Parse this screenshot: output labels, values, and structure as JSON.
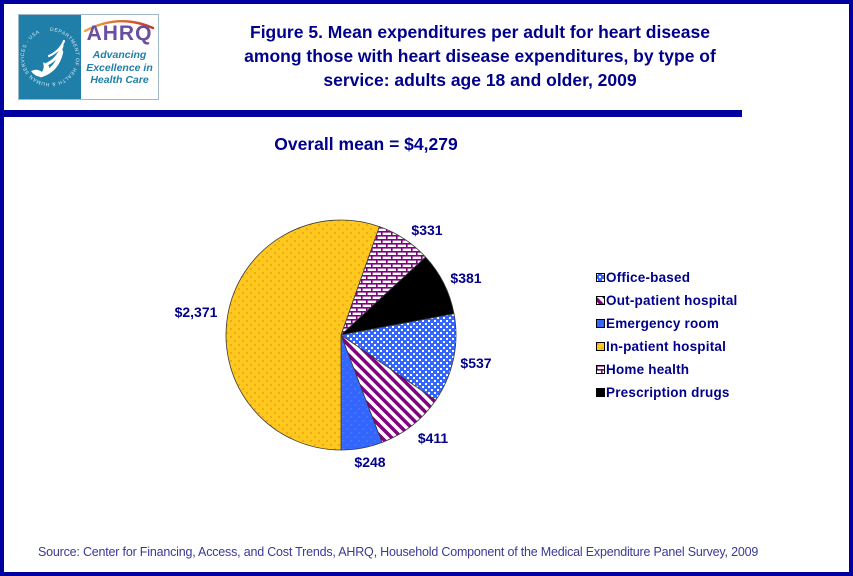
{
  "header": {
    "logo": {
      "agency_wordmark": "AHRQ",
      "tagline_lines": [
        "Advancing",
        "Excellence in",
        "Health Care"
      ],
      "seal_text": "DEPARTMENT OF HEALTH & HUMAN SERVICES - USA"
    },
    "title_lines": [
      "Figure 5. Mean expenditures per adult for heart disease",
      "among those with heart disease expenditures, by type of",
      "service: adults age 18 and older, 2009"
    ]
  },
  "overall_mean_label": "Overall mean = $4,279",
  "source_note": "Source: Center for Financing, Access, and Cost Trends, AHRQ, Household Component of the Medical Expenditure Panel Survey, 2009",
  "colors": {
    "navy_text": "#00008B",
    "frame_blue": "#0000A0",
    "gold": "#FFC81E",
    "royal_blue": "#3366FF",
    "purple": "#800080",
    "black": "#000000",
    "seal_teal": "#1F7FA8",
    "ahrq_purple": "#6B4E9E"
  },
  "chart_data": {
    "type": "pie",
    "title": "Figure 5. Mean expenditures per adult for heart disease among those with heart disease expenditures, by type of service: adults age 18 and older, 2009",
    "annotation": "Overall mean = $4,279",
    "total": 4279,
    "units": "US dollars, mean expenditure per adult",
    "legend_position": "right",
    "start_angle_deg": 19.47,
    "draw_order": [
      4,
      5,
      0,
      1,
      2,
      3
    ],
    "slices": [
      {
        "name": "Office-based",
        "value": 537,
        "label": "$537",
        "pattern": "office"
      },
      {
        "name": "Out-patient hospital",
        "value": 411,
        "label": "$411",
        "pattern": "outpatient"
      },
      {
        "name": "Emergency room",
        "value": 248,
        "label": "$248",
        "pattern": "emergency"
      },
      {
        "name": "In-patient hospital",
        "value": 2371,
        "label": "$2,371",
        "pattern": "inpatient"
      },
      {
        "name": "Home health",
        "value": 331,
        "label": "$331",
        "pattern": "homehealth"
      },
      {
        "name": "Prescription drugs",
        "value": 381,
        "label": "$381",
        "pattern": "prescription"
      }
    ]
  }
}
